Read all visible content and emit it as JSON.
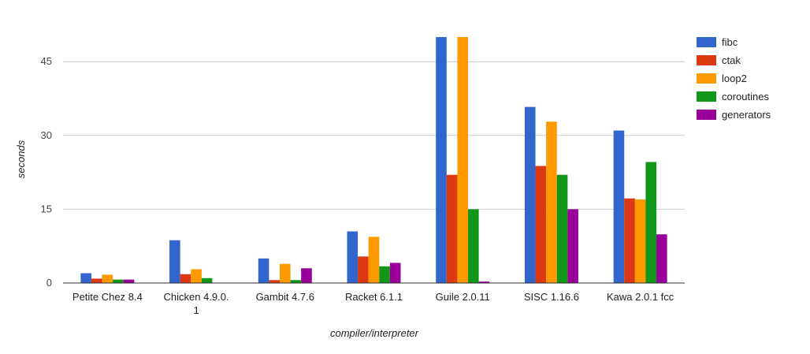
{
  "chart_data": {
    "type": "bar",
    "title": "",
    "xlabel": "compiler/interpreter",
    "ylabel": "seconds",
    "ylim": [
      0,
      50
    ],
    "yticks": [
      0,
      15,
      30,
      45
    ],
    "grid": true,
    "legend_position": "right",
    "categories": [
      [
        "Petite Chez 8.4"
      ],
      [
        "Chicken 4.9.0.",
        "1"
      ],
      [
        "Gambit 4.7.6"
      ],
      [
        "Racket 6.1.1"
      ],
      [
        "Guile 2.0.11"
      ],
      [
        "SISC 1.16.6"
      ],
      [
        "Kawa 2.0.1 fcc"
      ]
    ],
    "series": [
      {
        "name": "fibc",
        "color": "#3366cc",
        "values": [
          2.0,
          8.7,
          5.0,
          10.5,
          50.0,
          35.8,
          31.0
        ]
      },
      {
        "name": "ctak",
        "color": "#dc3912",
        "values": [
          0.9,
          1.8,
          0.6,
          5.4,
          22.0,
          23.8,
          17.2
        ]
      },
      {
        "name": "loop2",
        "color": "#ff9900",
        "values": [
          1.7,
          2.8,
          3.9,
          9.4,
          50.0,
          32.8,
          17.0
        ]
      },
      {
        "name": "coroutines",
        "color": "#109618",
        "values": [
          0.7,
          1.0,
          0.6,
          3.4,
          15.0,
          22.0,
          24.6
        ]
      },
      {
        "name": "generators",
        "color": "#990099",
        "values": [
          0.7,
          0.0,
          3.0,
          4.1,
          0.3,
          15.0,
          9.9
        ]
      }
    ]
  }
}
